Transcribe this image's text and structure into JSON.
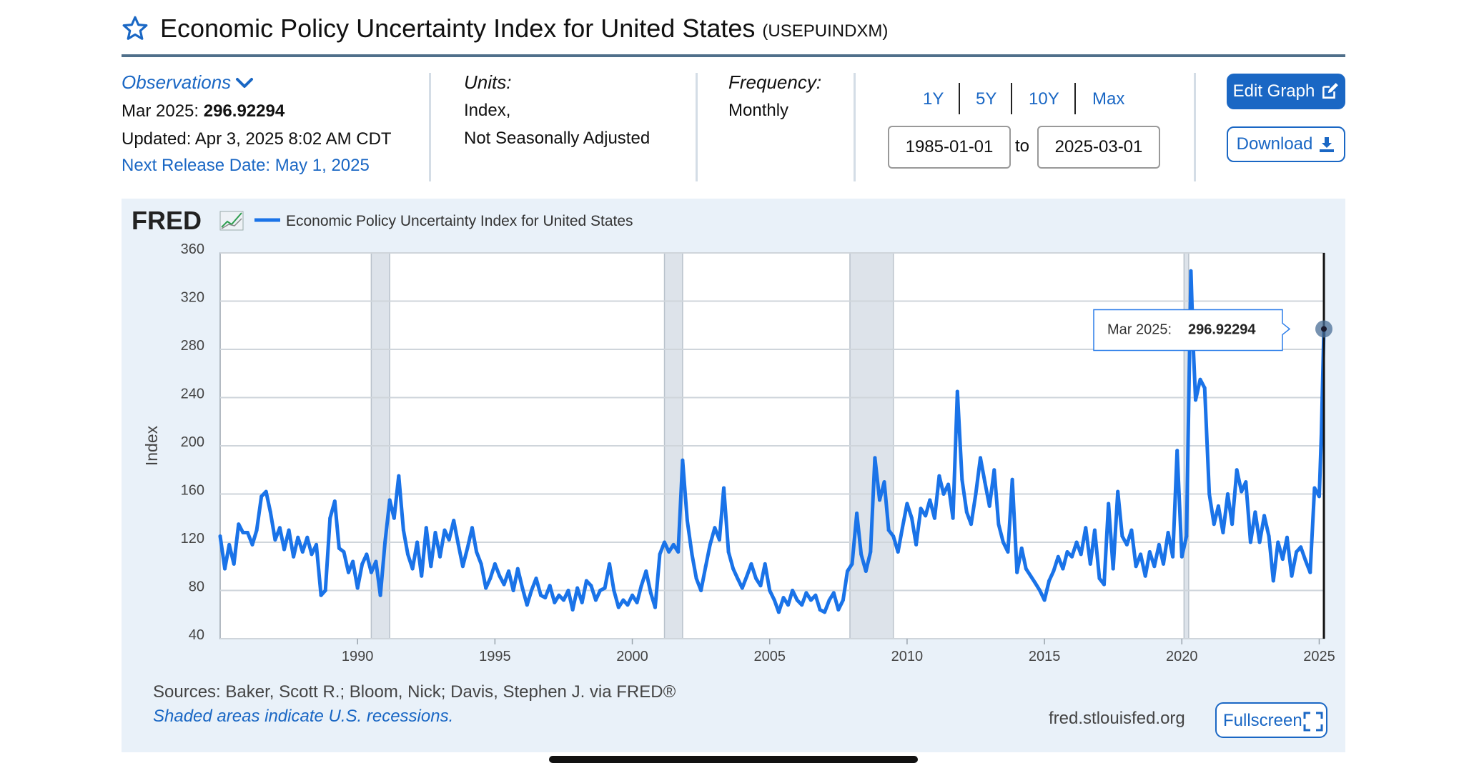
{
  "header": {
    "title": "Economic Policy Uncertainty Index for United States",
    "series_id": "(USEPUINDXM)",
    "star_icon": "star-outline-icon"
  },
  "info": {
    "observations_label": "Observations",
    "latest_date": "Mar 2025:",
    "latest_value": "296.92294",
    "updated": "Updated: Apr 3, 2025 8:02 AM CDT",
    "next_release": "Next Release Date: May 1, 2025",
    "units_label": "Units:",
    "units_line1": "Index,",
    "units_line2": "Not Seasonally Adjusted",
    "frequency_label": "Frequency:",
    "frequency_value": "Monthly"
  },
  "range": {
    "buttons": [
      "1Y",
      "5Y",
      "10Y",
      "Max"
    ],
    "start": "1985-01-01",
    "to_label": "to",
    "end": "2025-03-01"
  },
  "actions": {
    "edit_label": "Edit Graph",
    "download_label": "Download",
    "fullscreen_label": "Fullscreen"
  },
  "footer": {
    "sources": "Sources: Baker, Scott R.; Bloom, Nick; Davis, Stephen J. via FRED®",
    "recession_note": "Shaded areas indicate U.S. recessions.",
    "site": "fred.stlouisfed.org"
  },
  "logo": "FRED",
  "colors": {
    "accent": "#1a67c4",
    "series": "#1a73e8",
    "recession": "#dde3ea",
    "panel": "#e9f1f9"
  },
  "chart_data": {
    "type": "line",
    "title": "Economic Policy Uncertainty Index for United States",
    "ylabel": "Index",
    "xlim": [
      1985.0,
      2025.17
    ],
    "ylim": [
      40,
      360
    ],
    "yticks": [
      40,
      80,
      120,
      160,
      200,
      240,
      280,
      320,
      360
    ],
    "xticks": [
      1990,
      1995,
      2000,
      2005,
      2010,
      2015,
      2020,
      2025
    ],
    "grid": true,
    "legend_position": "top-left",
    "recessions": [
      [
        1990.5,
        1991.17
      ],
      [
        2001.17,
        2001.83
      ],
      [
        2007.92,
        2009.5
      ],
      [
        2020.08,
        2020.25
      ]
    ],
    "tooltip": {
      "label": "Mar 2025:",
      "value": "296.92294",
      "x": 2025.17,
      "y": 296.92
    },
    "series": [
      {
        "name": "Economic Policy Uncertainty Index for United States",
        "points": [
          [
            1985.0,
            125
          ],
          [
            1985.17,
            98
          ],
          [
            1985.33,
            118
          ],
          [
            1985.5,
            102
          ],
          [
            1985.67,
            135
          ],
          [
            1985.83,
            128
          ],
          [
            1986.0,
            128
          ],
          [
            1986.17,
            118
          ],
          [
            1986.33,
            130
          ],
          [
            1986.5,
            158
          ],
          [
            1986.67,
            162
          ],
          [
            1986.83,
            145
          ],
          [
            1987.0,
            122
          ],
          [
            1987.17,
            132
          ],
          [
            1987.33,
            114
          ],
          [
            1987.5,
            130
          ],
          [
            1987.67,
            108
          ],
          [
            1987.83,
            124
          ],
          [
            1988.0,
            112
          ],
          [
            1988.17,
            124
          ],
          [
            1988.33,
            110
          ],
          [
            1988.5,
            118
          ],
          [
            1988.67,
            76
          ],
          [
            1988.83,
            80
          ],
          [
            1989.0,
            140
          ],
          [
            1989.17,
            154
          ],
          [
            1989.33,
            115
          ],
          [
            1989.5,
            112
          ],
          [
            1989.67,
            95
          ],
          [
            1989.83,
            104
          ],
          [
            1990.0,
            82
          ],
          [
            1990.17,
            102
          ],
          [
            1990.33,
            110
          ],
          [
            1990.5,
            95
          ],
          [
            1990.67,
            104
          ],
          [
            1990.83,
            76
          ],
          [
            1991.0,
            120
          ],
          [
            1991.17,
            155
          ],
          [
            1991.33,
            140
          ],
          [
            1991.5,
            175
          ],
          [
            1991.67,
            130
          ],
          [
            1991.83,
            110
          ],
          [
            1992.0,
            98
          ],
          [
            1992.17,
            120
          ],
          [
            1992.33,
            92
          ],
          [
            1992.5,
            132
          ],
          [
            1992.67,
            100
          ],
          [
            1992.83,
            128
          ],
          [
            1993.0,
            108
          ],
          [
            1993.17,
            130
          ],
          [
            1993.33,
            122
          ],
          [
            1993.5,
            138
          ],
          [
            1993.67,
            118
          ],
          [
            1993.83,
            100
          ],
          [
            1994.0,
            115
          ],
          [
            1994.17,
            132
          ],
          [
            1994.33,
            112
          ],
          [
            1994.5,
            102
          ],
          [
            1994.67,
            82
          ],
          [
            1994.83,
            90
          ],
          [
            1995.0,
            102
          ],
          [
            1995.17,
            92
          ],
          [
            1995.33,
            85
          ],
          [
            1995.5,
            96
          ],
          [
            1995.67,
            80
          ],
          [
            1995.83,
            98
          ],
          [
            1996.0,
            82
          ],
          [
            1996.17,
            68
          ],
          [
            1996.33,
            80
          ],
          [
            1996.5,
            90
          ],
          [
            1996.67,
            76
          ],
          [
            1996.83,
            74
          ],
          [
            1997.0,
            84
          ],
          [
            1997.17,
            70
          ],
          [
            1997.33,
            76
          ],
          [
            1997.5,
            72
          ],
          [
            1997.67,
            80
          ],
          [
            1997.83,
            64
          ],
          [
            1998.0,
            82
          ],
          [
            1998.17,
            70
          ],
          [
            1998.33,
            88
          ],
          [
            1998.5,
            84
          ],
          [
            1998.67,
            72
          ],
          [
            1998.83,
            80
          ],
          [
            1999.0,
            82
          ],
          [
            1999.17,
            102
          ],
          [
            1999.33,
            80
          ],
          [
            1999.5,
            66
          ],
          [
            1999.67,
            72
          ],
          [
            1999.83,
            68
          ],
          [
            2000.0,
            76
          ],
          [
            2000.17,
            70
          ],
          [
            2000.33,
            84
          ],
          [
            2000.5,
            96
          ],
          [
            2000.67,
            78
          ],
          [
            2000.83,
            66
          ],
          [
            2001.0,
            110
          ],
          [
            2001.17,
            120
          ],
          [
            2001.33,
            112
          ],
          [
            2001.5,
            118
          ],
          [
            2001.67,
            112
          ],
          [
            2001.83,
            188
          ],
          [
            2002.0,
            138
          ],
          [
            2002.17,
            110
          ],
          [
            2002.33,
            90
          ],
          [
            2002.5,
            80
          ],
          [
            2002.67,
            100
          ],
          [
            2002.83,
            118
          ],
          [
            2003.0,
            132
          ],
          [
            2003.17,
            122
          ],
          [
            2003.33,
            165
          ],
          [
            2003.5,
            112
          ],
          [
            2003.67,
            98
          ],
          [
            2003.83,
            90
          ],
          [
            2004.0,
            82
          ],
          [
            2004.17,
            92
          ],
          [
            2004.33,
            102
          ],
          [
            2004.5,
            90
          ],
          [
            2004.67,
            84
          ],
          [
            2004.83,
            102
          ],
          [
            2005.0,
            80
          ],
          [
            2005.17,
            72
          ],
          [
            2005.33,
            62
          ],
          [
            2005.5,
            74
          ],
          [
            2005.67,
            68
          ],
          [
            2005.83,
            80
          ],
          [
            2006.0,
            72
          ],
          [
            2006.17,
            68
          ],
          [
            2006.33,
            78
          ],
          [
            2006.5,
            72
          ],
          [
            2006.67,
            76
          ],
          [
            2006.83,
            64
          ],
          [
            2007.0,
            62
          ],
          [
            2007.17,
            72
          ],
          [
            2007.33,
            78
          ],
          [
            2007.5,
            64
          ],
          [
            2007.67,
            72
          ],
          [
            2007.83,
            96
          ],
          [
            2008.0,
            102
          ],
          [
            2008.17,
            144
          ],
          [
            2008.33,
            110
          ],
          [
            2008.5,
            96
          ],
          [
            2008.67,
            112
          ],
          [
            2008.83,
            190
          ],
          [
            2009.0,
            155
          ],
          [
            2009.17,
            170
          ],
          [
            2009.33,
            130
          ],
          [
            2009.5,
            125
          ],
          [
            2009.67,
            112
          ],
          [
            2009.83,
            132
          ],
          [
            2010.0,
            152
          ],
          [
            2010.17,
            140
          ],
          [
            2010.33,
            118
          ],
          [
            2010.5,
            148
          ],
          [
            2010.67,
            142
          ],
          [
            2010.83,
            155
          ],
          [
            2011.0,
            140
          ],
          [
            2011.17,
            175
          ],
          [
            2011.33,
            160
          ],
          [
            2011.5,
            168
          ],
          [
            2011.67,
            140
          ],
          [
            2011.83,
            245
          ],
          [
            2012.0,
            172
          ],
          [
            2012.17,
            145
          ],
          [
            2012.33,
            135
          ],
          [
            2012.5,
            160
          ],
          [
            2012.67,
            190
          ],
          [
            2012.83,
            170
          ],
          [
            2013.0,
            150
          ],
          [
            2013.17,
            180
          ],
          [
            2013.33,
            135
          ],
          [
            2013.5,
            120
          ],
          [
            2013.67,
            112
          ],
          [
            2013.83,
            172
          ],
          [
            2014.0,
            95
          ],
          [
            2014.17,
            115
          ],
          [
            2014.33,
            98
          ],
          [
            2014.5,
            92
          ],
          [
            2014.67,
            86
          ],
          [
            2014.83,
            80
          ],
          [
            2015.0,
            72
          ],
          [
            2015.17,
            88
          ],
          [
            2015.33,
            96
          ],
          [
            2015.5,
            108
          ],
          [
            2015.67,
            98
          ],
          [
            2015.83,
            112
          ],
          [
            2016.0,
            108
          ],
          [
            2016.17,
            120
          ],
          [
            2016.33,
            110
          ],
          [
            2016.5,
            132
          ],
          [
            2016.67,
            102
          ],
          [
            2016.83,
            130
          ],
          [
            2017.0,
            90
          ],
          [
            2017.17,
            85
          ],
          [
            2017.33,
            152
          ],
          [
            2017.5,
            98
          ],
          [
            2017.67,
            162
          ],
          [
            2017.83,
            125
          ],
          [
            2018.0,
            118
          ],
          [
            2018.17,
            130
          ],
          [
            2018.33,
            100
          ],
          [
            2018.5,
            110
          ],
          [
            2018.67,
            92
          ],
          [
            2018.83,
            112
          ],
          [
            2019.0,
            100
          ],
          [
            2019.17,
            118
          ],
          [
            2019.33,
            102
          ],
          [
            2019.5,
            128
          ],
          [
            2019.67,
            108
          ],
          [
            2019.83,
            196
          ],
          [
            2020.0,
            108
          ],
          [
            2020.17,
            125
          ],
          [
            2020.33,
            345
          ],
          [
            2020.42,
            280
          ],
          [
            2020.5,
            238
          ],
          [
            2020.67,
            255
          ],
          [
            2020.83,
            248
          ],
          [
            2021.0,
            160
          ],
          [
            2021.17,
            135
          ],
          [
            2021.33,
            150
          ],
          [
            2021.5,
            128
          ],
          [
            2021.67,
            160
          ],
          [
            2021.83,
            135
          ],
          [
            2022.0,
            180
          ],
          [
            2022.17,
            162
          ],
          [
            2022.33,
            170
          ],
          [
            2022.5,
            120
          ],
          [
            2022.67,
            145
          ],
          [
            2022.83,
            120
          ],
          [
            2023.0,
            142
          ],
          [
            2023.17,
            125
          ],
          [
            2023.33,
            88
          ],
          [
            2023.5,
            120
          ],
          [
            2023.67,
            106
          ],
          [
            2023.83,
            124
          ],
          [
            2024.0,
            92
          ],
          [
            2024.17,
            112
          ],
          [
            2024.33,
            116
          ],
          [
            2024.5,
            105
          ],
          [
            2024.67,
            95
          ],
          [
            2024.83,
            165
          ],
          [
            2025.0,
            158
          ],
          [
            2025.08,
            210
          ],
          [
            2025.17,
            296.92
          ]
        ]
      }
    ]
  }
}
